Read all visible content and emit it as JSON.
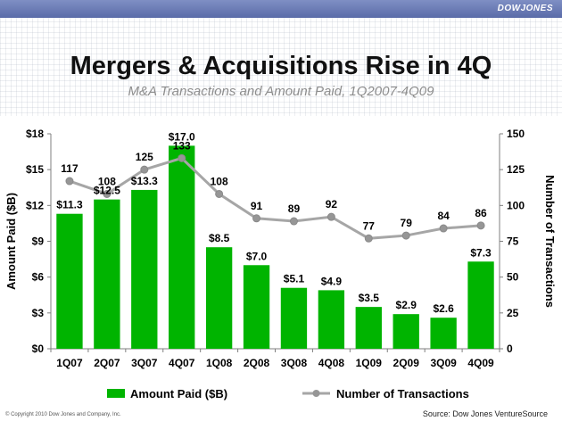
{
  "header": {
    "brand": "DOWJONES"
  },
  "slide": {
    "title": "Mergers & Acquisitions Rise in 4Q",
    "subtitle": "M&A Transactions and Amount Paid, 1Q2007-4Q09"
  },
  "footer": {
    "copyright": "© Copyright 2010 Dow Jones and Company, Inc.",
    "source": "Source: Dow Jones VentureSource"
  },
  "colors": {
    "bar": "#00b400",
    "line": "#a6a6a6",
    "marker": "#969696",
    "header": "#6a7bb6"
  },
  "chart_data": {
    "type": "bar",
    "categories": [
      "1Q07",
      "2Q07",
      "3Q07",
      "4Q07",
      "1Q08",
      "2Q08",
      "3Q08",
      "4Q08",
      "1Q09",
      "2Q09",
      "3Q09",
      "4Q09"
    ],
    "series": [
      {
        "name": "Amount Paid ($B)",
        "type": "bar",
        "axis": "left",
        "values": [
          11.3,
          12.5,
          13.3,
          17.0,
          8.5,
          7.0,
          5.1,
          4.9,
          3.5,
          2.9,
          2.6,
          7.3
        ],
        "labels": [
          "$11.3",
          "$12.5",
          "$13.3",
          "$17.0",
          "$8.5",
          "$7.0",
          "$5.1",
          "$4.9",
          "$3.5",
          "$2.9",
          "$2.6",
          "$7.3"
        ]
      },
      {
        "name": "Number of Transactions",
        "type": "line",
        "axis": "right",
        "values": [
          117,
          108,
          125,
          133,
          108,
          91,
          89,
          92,
          77,
          79,
          84,
          86
        ],
        "labels": [
          "117",
          "108",
          "125",
          "133",
          "108",
          "91",
          "89",
          "92",
          "77",
          "79",
          "84",
          "86"
        ]
      }
    ],
    "y_left": {
      "label": "Amount Paid ($B)",
      "range": [
        0,
        18
      ],
      "ticks": [
        "$0",
        "$3",
        "$6",
        "$9",
        "$12",
        "$15",
        "$18"
      ]
    },
    "y_right": {
      "label": "Number of Transactions",
      "range": [
        0,
        150
      ],
      "ticks": [
        "0",
        "25",
        "50",
        "75",
        "100",
        "125",
        "150"
      ]
    },
    "legend": {
      "position": "bottom",
      "items": [
        "Amount Paid ($B)",
        "Number of Transactions"
      ]
    },
    "grid": false
  }
}
